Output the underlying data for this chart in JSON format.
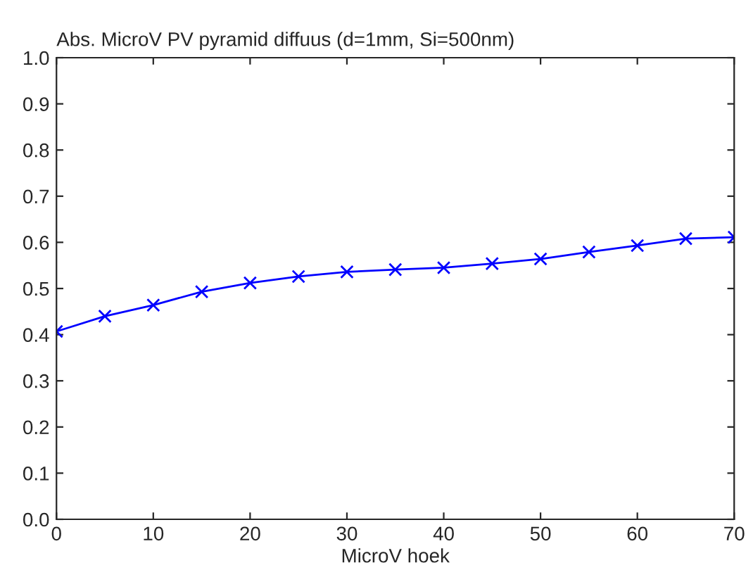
{
  "chart_data": {
    "type": "line",
    "title": "Abs. MicroV PV pyramid diffuus (d=1mm, Si=500nm)",
    "xlabel": "MicroV hoek",
    "x": [
      0,
      5,
      10,
      15,
      20,
      25,
      30,
      35,
      40,
      45,
      50,
      55,
      60,
      65,
      70
    ],
    "series": [
      {
        "color": "#0000ff",
        "values": [
          0.407,
          0.44,
          0.464,
          0.493,
          0.512,
          0.526,
          0.536,
          0.541,
          0.545,
          0.554,
          0.564,
          0.579,
          0.593,
          0.608,
          0.611
        ]
      }
    ],
    "xlim": [
      0,
      70
    ],
    "xticks": [
      0,
      10,
      20,
      30,
      40,
      50,
      60,
      70
    ],
    "ylim": [
      0,
      1
    ],
    "yticks": [
      {
        "value": 0,
        "label": "0.0"
      },
      {
        "value": 0.1,
        "label": "0.1"
      },
      {
        "value": 0.2,
        "label": "0.2"
      },
      {
        "value": 0.3,
        "label": "0.3"
      },
      {
        "value": 0.4,
        "label": "0.4"
      },
      {
        "value": 0.5,
        "label": "0.5"
      },
      {
        "value": 0.6,
        "label": "0.6"
      },
      {
        "value": 0.7,
        "label": "0.7"
      },
      {
        "value": 0.8,
        "label": "0.8"
      },
      {
        "value": 0.9,
        "label": "0.9"
      },
      {
        "value": 1,
        "label": "1.0"
      }
    ],
    "marker": "cross",
    "line_style": "solid",
    "grid": false,
    "legend": false
  }
}
